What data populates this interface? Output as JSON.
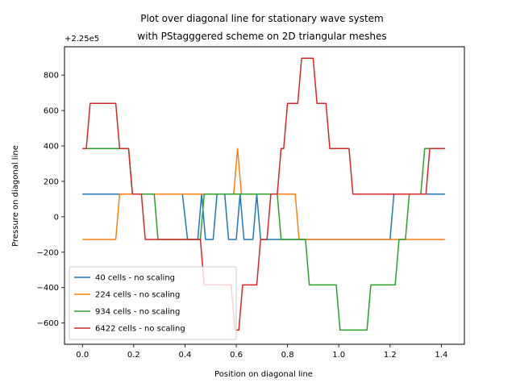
{
  "chart_data": {
    "type": "line",
    "title": "Plot over diagonal line for stationary wave system\nwith PStagggered scheme on 2D triangular meshes",
    "xlabel": "Position on diagonal line",
    "ylabel": "Pressure on diagonal line",
    "offset_label": "+2.25e5",
    "xlim": [
      -0.07,
      1.49
    ],
    "ylim": [
      -720,
      960
    ],
    "xticks": [
      0.0,
      0.2,
      0.4,
      0.6,
      0.8,
      1.0,
      1.2,
      1.4
    ],
    "xtick_labels": [
      "0.0",
      "0.2",
      "0.4",
      "0.6",
      "0.8",
      "1.0",
      "1.2",
      "1.4"
    ],
    "yticks": [
      -600,
      -400,
      -200,
      0,
      200,
      400,
      600,
      800
    ],
    "ytick_labels": [
      "−600",
      "−400",
      "−200",
      "0",
      "200",
      "400",
      "600",
      "800"
    ],
    "legend_position": "lower-left",
    "grid": false,
    "series": [
      {
        "name": "40 cells - no scaling",
        "color": "#1f77b4",
        "points": [
          [
            0.0,
            128
          ],
          [
            0.39,
            128
          ],
          [
            0.41,
            -128
          ],
          [
            0.45,
            -128
          ],
          [
            0.465,
            128
          ],
          [
            0.48,
            -128
          ],
          [
            0.51,
            -128
          ],
          [
            0.525,
            128
          ],
          [
            0.555,
            128
          ],
          [
            0.57,
            -128
          ],
          [
            0.6,
            -128
          ],
          [
            0.615,
            128
          ],
          [
            0.63,
            -128
          ],
          [
            0.665,
            -128
          ],
          [
            0.68,
            128
          ],
          [
            0.695,
            -128
          ],
          [
            1.2,
            -128
          ],
          [
            1.215,
            128
          ],
          [
            1.414,
            128
          ]
        ]
      },
      {
        "name": "224 cells - no scaling",
        "color": "#ff7f0e",
        "points": [
          [
            0.0,
            -128
          ],
          [
            0.13,
            -128
          ],
          [
            0.145,
            128
          ],
          [
            0.59,
            128
          ],
          [
            0.605,
            385
          ],
          [
            0.62,
            128
          ],
          [
            0.83,
            128
          ],
          [
            0.845,
            -128
          ],
          [
            1.414,
            -128
          ]
        ]
      },
      {
        "name": "934 cells - no scaling",
        "color": "#2ca02c",
        "points": [
          [
            0.0,
            385
          ],
          [
            0.14,
            385
          ],
          [
            0.18,
            385
          ],
          [
            0.195,
            128
          ],
          [
            0.28,
            128
          ],
          [
            0.295,
            -128
          ],
          [
            0.46,
            -128
          ],
          [
            0.475,
            128
          ],
          [
            0.76,
            128
          ],
          [
            0.775,
            -128
          ],
          [
            0.87,
            -128
          ],
          [
            0.885,
            -385
          ],
          [
            0.99,
            -385
          ],
          [
            1.005,
            -640
          ],
          [
            1.11,
            -640
          ],
          [
            1.125,
            -385
          ],
          [
            1.22,
            -385
          ],
          [
            1.235,
            -128
          ],
          [
            1.26,
            -128
          ],
          [
            1.275,
            128
          ],
          [
            1.32,
            128
          ],
          [
            1.335,
            385
          ],
          [
            1.414,
            385
          ]
        ]
      },
      {
        "name": "6422 cells - no scaling",
        "color": "#d62728",
        "points": [
          [
            0.0,
            385
          ],
          [
            0.015,
            385
          ],
          [
            0.03,
            640
          ],
          [
            0.13,
            640
          ],
          [
            0.145,
            385
          ],
          [
            0.18,
            385
          ],
          [
            0.195,
            128
          ],
          [
            0.23,
            128
          ],
          [
            0.245,
            -128
          ],
          [
            0.34,
            -128
          ],
          [
            0.46,
            -128
          ],
          [
            0.475,
            -385
          ],
          [
            0.58,
            -385
          ],
          [
            0.595,
            -640
          ],
          [
            0.61,
            -640
          ],
          [
            0.625,
            -385
          ],
          [
            0.68,
            -385
          ],
          [
            0.695,
            -128
          ],
          [
            0.72,
            -128
          ],
          [
            0.735,
            128
          ],
          [
            0.76,
            128
          ],
          [
            0.775,
            385
          ],
          [
            0.785,
            385
          ],
          [
            0.8,
            640
          ],
          [
            0.84,
            640
          ],
          [
            0.855,
            895
          ],
          [
            0.9,
            895
          ],
          [
            0.915,
            640
          ],
          [
            0.95,
            640
          ],
          [
            0.965,
            385
          ],
          [
            1.04,
            385
          ],
          [
            1.055,
            128
          ],
          [
            1.34,
            128
          ],
          [
            1.355,
            385
          ],
          [
            1.414,
            385
          ]
        ]
      }
    ]
  }
}
